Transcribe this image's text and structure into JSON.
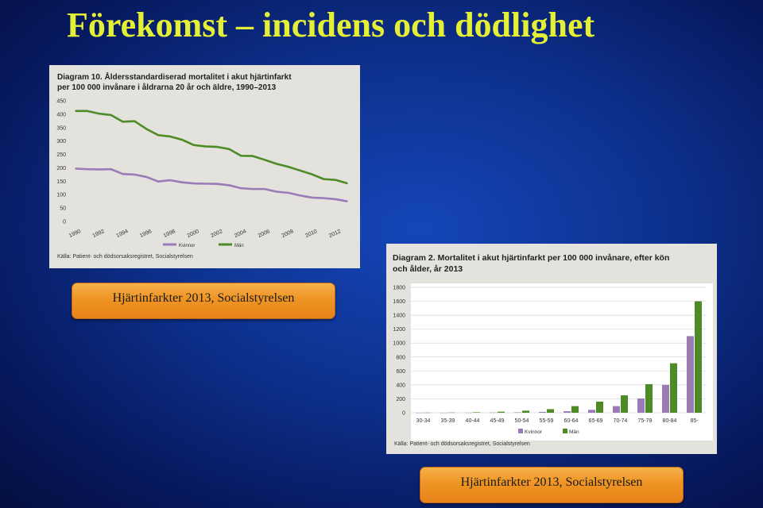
{
  "slide": {
    "title": "Förekomst – incidens och dödlighet",
    "caption_left": "Hjärtinfarkter 2013, Socialstyrelsen",
    "caption_right": "Hjärtinfarkter 2013, Socialstyrelsen"
  },
  "colors": {
    "background": "#0d2f8a",
    "title": "#e4f036",
    "caption_box": "#ee9424",
    "panel": "#e3e2dd",
    "kvinnor": "#9a7bb6",
    "man": "#4d8b26"
  },
  "chart_data": [
    {
      "type": "line",
      "title": "Diagram 10. Åldersstandardiserad mortalitet i akut hjärtinfarkt per 100 000 invånare i åldrarna 20 år och äldre, 1990–2013",
      "title_lines": [
        "Diagram 10. Åldersstandardiserad mortalitet i akut hjärtinfarkt",
        "per 100 000 invånare i åldrarna 20 år och äldre, 1990–2013"
      ],
      "x": [
        1990,
        1991,
        1992,
        1993,
        1994,
        1995,
        1996,
        1997,
        1998,
        1999,
        2000,
        2001,
        2002,
        2003,
        2004,
        2005,
        2006,
        2007,
        2008,
        2009,
        2010,
        2011,
        2012,
        2013
      ],
      "x_tick_labels": [
        "1990",
        "1992",
        "1994",
        "1996",
        "1998",
        "2000",
        "2002",
        "2004",
        "2006",
        "2008",
        "2010",
        "2012"
      ],
      "series": [
        {
          "name": "Kvinnor",
          "values": [
            197,
            195,
            194,
            195,
            177,
            175,
            166,
            149,
            154,
            146,
            142,
            141,
            140,
            135,
            124,
            121,
            121,
            111,
            107,
            97,
            89,
            87,
            83,
            75
          ]
        },
        {
          "name": "Män",
          "values": [
            412,
            412,
            402,
            397,
            372,
            374,
            345,
            322,
            317,
            305,
            285,
            280,
            278,
            270,
            245,
            244,
            230,
            215,
            204,
            190,
            176,
            158,
            155,
            142
          ]
        }
      ],
      "ylim": [
        0,
        450
      ],
      "y_ticks": [
        0,
        50,
        100,
        150,
        200,
        250,
        300,
        350,
        400,
        450
      ],
      "legend": "bottom",
      "grid": false,
      "source": "Källa: Patient- och dödsorsaksregistret, Socialstyrelsen"
    },
    {
      "type": "bar",
      "title": "Diagram 2. Mortalitet i akut hjärtinfarkt per 100 000 invånare, efter kön och ålder, år 2013",
      "title_lines": [
        "Diagram 2. Mortalitet i akut hjärtinfarkt per 100 000 invånare, efter kön",
        "och ålder, år 2013"
      ],
      "categories": [
        "30-34",
        "35-39",
        "40-44",
        "45-49",
        "50-54",
        "55-59",
        "60-64",
        "65-69",
        "70-74",
        "75-79",
        "80-84",
        "85-"
      ],
      "series": [
        {
          "name": "Kvinnor",
          "values": [
            1,
            1,
            2,
            3,
            6,
            12,
            22,
            42,
            95,
            205,
            400,
            1100
          ]
        },
        {
          "name": "Män",
          "values": [
            2,
            3,
            7,
            15,
            30,
            52,
            95,
            160,
            250,
            410,
            710,
            1600
          ]
        }
      ],
      "ylim": [
        0,
        1800
      ],
      "y_ticks": [
        0,
        200,
        400,
        600,
        800,
        1000,
        1200,
        1400,
        1600,
        1800
      ],
      "legend": "bottom",
      "grid": true,
      "source": "Källa: Patient- och dödsorsaksregistret, Socialstyrelsen"
    }
  ]
}
